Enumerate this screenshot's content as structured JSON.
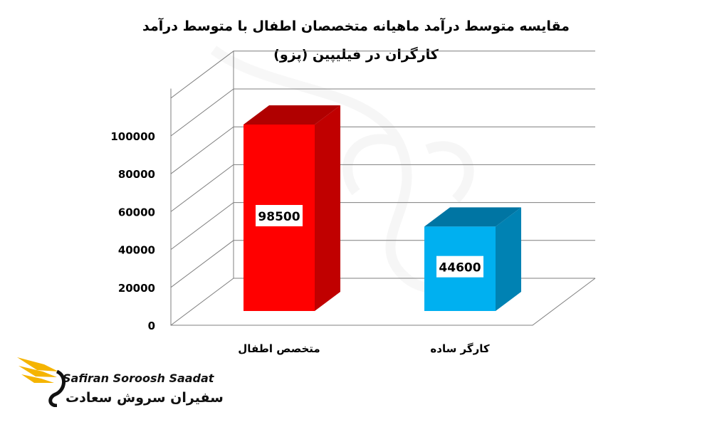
{
  "chart_data": {
    "type": "bar",
    "title_line_1": "مقایسه متوسط درآمد ماهیانه متخصصان اطفال با متوسط درآمد",
    "title_line_2": "کارگران در فیلیپین (پزو)",
    "categories": [
      "متخصص اطفال",
      "کارگر ساده"
    ],
    "values": [
      98500,
      44600
    ],
    "data_labels": [
      "98500",
      "44600"
    ],
    "bar_colors": [
      "#ff0000",
      "#00b0f0"
    ],
    "bar_side_colors": [
      "#c00000",
      "#0082b3"
    ],
    "bar_top_colors": [
      "#b00000",
      "#0075a3"
    ],
    "ylim": [
      0,
      100000
    ],
    "yticks": [
      "0",
      "20000",
      "40000",
      "60000",
      "80000",
      "100000"
    ],
    "ytick_values": [
      0,
      20000,
      40000,
      60000,
      80000,
      100000
    ],
    "grid": true,
    "style": "3d-bar",
    "xlabel": "",
    "ylabel": ""
  },
  "branding": {
    "logo_en": "Safiran Soroosh Saadat",
    "logo_fa": "سفیران سروش سعادت",
    "logo_colors": [
      "#f5b400",
      "#111111"
    ]
  }
}
